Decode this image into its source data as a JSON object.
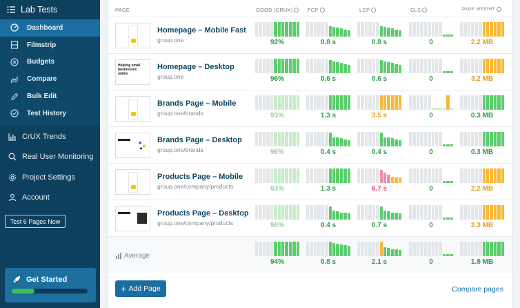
{
  "sidebar": {
    "title": "Lab Tests",
    "sub_items": [
      {
        "label": "Dashboard",
        "icon": "dashboard-icon",
        "active": true
      },
      {
        "label": "Filmstrip",
        "icon": "filmstrip-icon"
      },
      {
        "label": "Budgets",
        "icon": "budgets-icon"
      },
      {
        "label": "Compare",
        "icon": "compare-icon"
      },
      {
        "label": "Bulk Edit",
        "icon": "edit-icon"
      },
      {
        "label": "Test History",
        "icon": "history-icon"
      }
    ],
    "items": [
      {
        "label": "CrUX Trends",
        "icon": "chart-icon"
      },
      {
        "label": "Real User Monitoring",
        "icon": "search-icon"
      },
      {
        "label": "Project Settings",
        "icon": "gear-icon"
      },
      {
        "label": "Account",
        "icon": "user-icon"
      }
    ],
    "test_button": "Test 6 Pages Now",
    "get_started": {
      "label": "Get Started",
      "progress": 0.3
    }
  },
  "table": {
    "headers": {
      "page": "PAGE",
      "good": "GOOD (CRUX)",
      "fcp": "FCP",
      "lcp": "LCP",
      "cls": "CLS",
      "weight": "PAGE WEIGHT"
    },
    "rows": [
      {
        "title": "Homepage – Mobile Fast",
        "url": "group.one",
        "good": "92%",
        "fcp": "0.8 s",
        "lcp": "0.8 s",
        "cls": "0",
        "weight": "2.2 MB"
      },
      {
        "title": "Homepage – Desktop",
        "url": "group.one",
        "good": "96%",
        "fcp": "0.6 s",
        "lcp": "0.6 s",
        "cls": "0",
        "weight": "3.2 MB"
      },
      {
        "title": "Brands Page – Mobile",
        "url": "group.one/brands",
        "good": "93%",
        "fcp": "1.3 s",
        "lcp": "3.5 s",
        "cls": "0",
        "weight": "0.3 MB"
      },
      {
        "title": "Brands Page – Desktop",
        "url": "group.one/brands",
        "good": "96%",
        "fcp": "0.4 s",
        "lcp": "0.4 s",
        "cls": "0",
        "weight": "0.3 MB"
      },
      {
        "title": "Products Page – Mobile",
        "url": "group.one/company/products",
        "good": "93%",
        "fcp": "1.3 s",
        "lcp": "6.7 s",
        "cls": "0",
        "weight": "2.2 MB"
      },
      {
        "title": "Products Page – Desktop",
        "url": "group.one/company/products",
        "good": "96%",
        "fcp": "0.4 s",
        "lcp": "0.7 s",
        "cls": "0",
        "weight": "2.3 MB"
      }
    ],
    "average": {
      "label": "Average",
      "good": "94%",
      "fcp": "0.8 s",
      "lcp": "2.1 s",
      "cls": "0",
      "weight": "1.8 MB"
    },
    "thumb_text": "Helping small businesses online"
  },
  "footer": {
    "add_page": "Add Page",
    "compare_pages": "Compare pages"
  },
  "colors": {
    "green": "#5ccd6e",
    "lightgreen": "#c9ebcb",
    "orange": "#f7b93a",
    "pink": "#f28da3",
    "gray": "#e4e7ea"
  }
}
